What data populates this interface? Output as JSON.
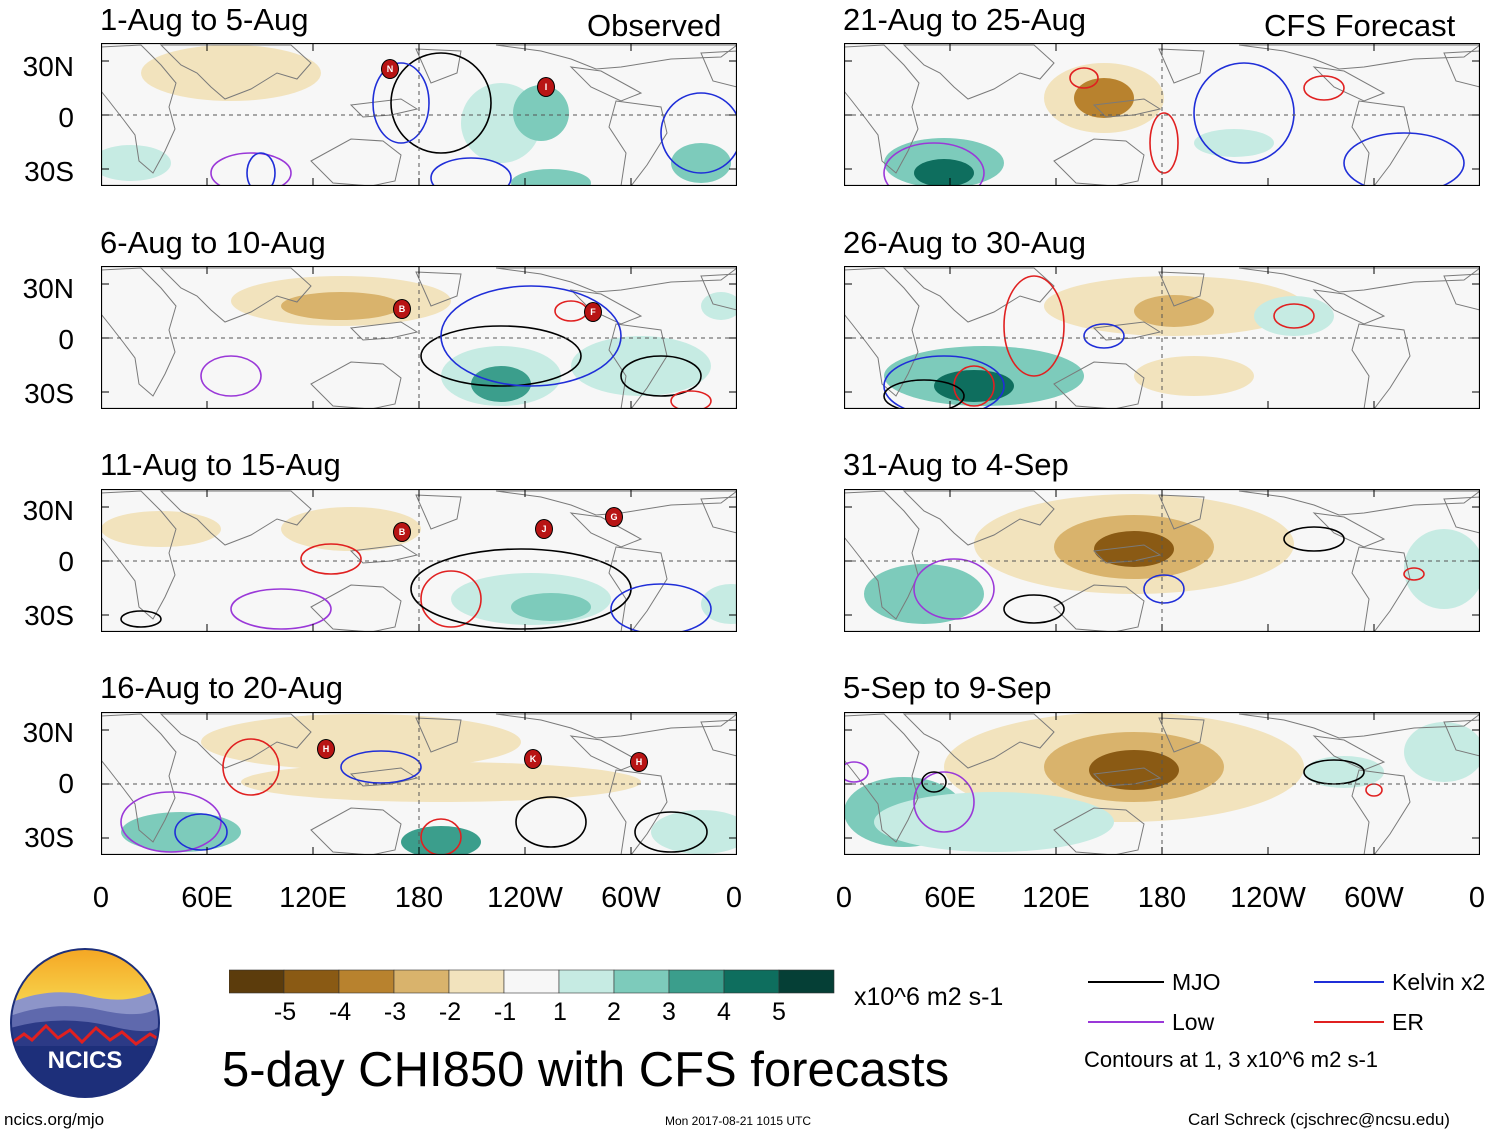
{
  "headers": {
    "observed": "Observed",
    "forecast": "CFS Forecast"
  },
  "panels": [
    {
      "title": "1-Aug to 5-Aug",
      "group": "observed"
    },
    {
      "title": "6-Aug to 10-Aug",
      "group": "observed"
    },
    {
      "title": "11-Aug to 15-Aug",
      "group": "observed"
    },
    {
      "title": "16-Aug to 20-Aug",
      "group": "observed"
    },
    {
      "title": "21-Aug to 25-Aug",
      "group": "forecast"
    },
    {
      "title": "26-Aug to 30-Aug",
      "group": "forecast"
    },
    {
      "title": "31-Aug to 4-Sep",
      "group": "forecast"
    },
    {
      "title": "5-Sep to 9-Sep",
      "group": "forecast"
    }
  ],
  "lat_labels": [
    "30N",
    "0",
    "30S"
  ],
  "lon_labels": [
    "0",
    "60E",
    "120E",
    "180",
    "120W",
    "60W",
    "0"
  ],
  "storm_markers": [
    {
      "panel": 0,
      "label": "N"
    },
    {
      "panel": 0,
      "label": "I"
    },
    {
      "panel": 1,
      "label": "B"
    },
    {
      "panel": 1,
      "label": "F"
    },
    {
      "panel": 2,
      "label": "B"
    },
    {
      "panel": 2,
      "label": "J"
    },
    {
      "panel": 2,
      "label": "G"
    },
    {
      "panel": 3,
      "label": "H"
    },
    {
      "panel": 3,
      "label": "K"
    },
    {
      "panel": 3,
      "label": "H"
    }
  ],
  "colorbar": {
    "ticks": [
      "-5",
      "-4",
      "-3",
      "-2",
      "-1",
      "1",
      "2",
      "3",
      "4",
      "5"
    ],
    "units": "x10^6 m2 s-1",
    "colors": [
      "#5c3c0c",
      "#8a5a14",
      "#b8822e",
      "#d9b36c",
      "#f2e3bd",
      "#f7f7f7",
      "#c6ebe3",
      "#7dcbbb",
      "#3b9e8c",
      "#0e6e5e",
      "#053f36"
    ]
  },
  "legend": {
    "mjo": "MJO",
    "kelvin": "Kelvin x2",
    "low": "Low",
    "er": "ER",
    "note": "Contours at 1, 3 x10^6 m2 s-1",
    "colors": {
      "mjo": "#000000",
      "kelvin": "#1f2ed8",
      "low": "#9a38d8",
      "er": "#e02020"
    }
  },
  "main_title": "5-day CHI850 with CFS forecasts",
  "logo_text": "NCICS",
  "footer": {
    "left": "ncics.org/mjo",
    "center": "Mon 2017-08-21 1015 UTC",
    "right": "Carl Schreck (cjschrec@ncsu.edu)"
  }
}
